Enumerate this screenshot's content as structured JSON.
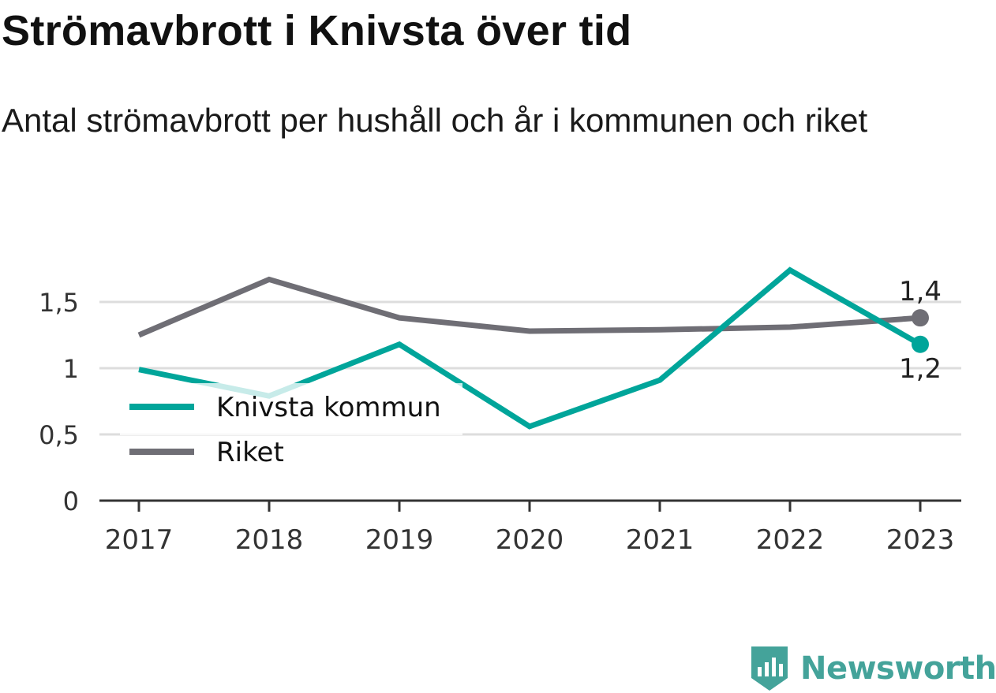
{
  "title": "Strömavbrott i Knivsta över tid",
  "subtitle": "Antal strömavbrott per hushåll och år i kommunen och riket",
  "brand": {
    "name": "Newsworthy",
    "icon": "bar-chart-logo-icon",
    "color": "#44a39a"
  },
  "chart_data": {
    "type": "line",
    "x": [
      "2017",
      "2018",
      "2019",
      "2020",
      "2021",
      "2022",
      "2023"
    ],
    "y_ticks": [
      "0",
      "0,5",
      "1",
      "1,5"
    ],
    "y_tick_values": [
      0,
      0.5,
      1,
      1.5
    ],
    "ylim": [
      0,
      1.8
    ],
    "grid": true,
    "legend_position": "bottom-left",
    "series": [
      {
        "name": "Knivsta kommun",
        "color": "#00a59a",
        "values": [
          0.99,
          0.79,
          1.18,
          0.56,
          0.91,
          1.74,
          1.18
        ],
        "end_label": "1,2"
      },
      {
        "name": "Riket",
        "color": "#6f6e75",
        "values": [
          1.25,
          1.67,
          1.38,
          1.28,
          1.29,
          1.31,
          1.38
        ],
        "end_label": "1,4"
      }
    ]
  }
}
